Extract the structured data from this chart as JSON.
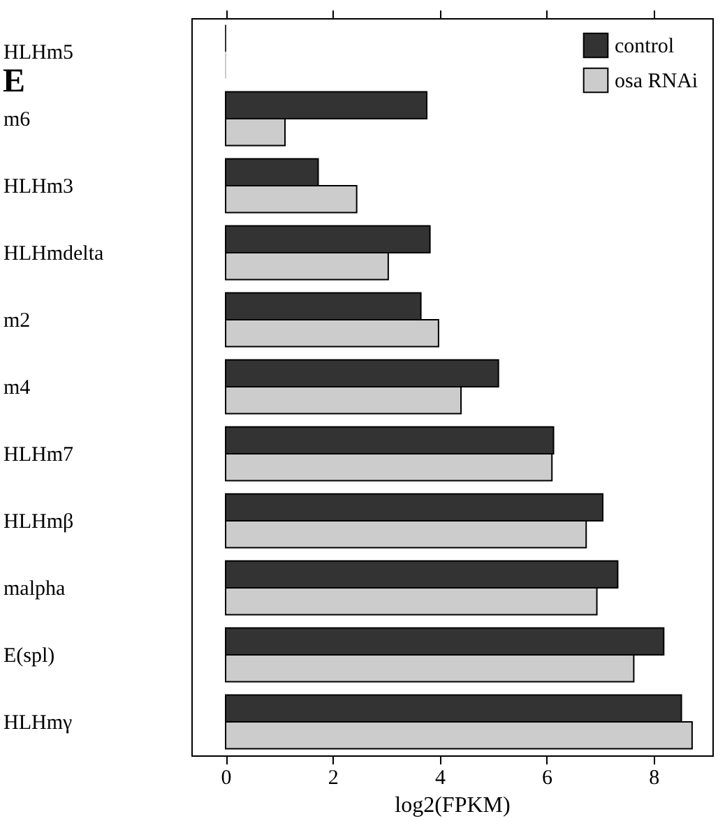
{
  "chart_data": {
    "type": "bar",
    "orientation": "horizontal",
    "xlabel": "log2(FPKM)",
    "annotations": [
      "E"
    ],
    "categories": [
      "HLHm5",
      "m6",
      "HLHm3",
      "HLHmdelta",
      "m2",
      "m4",
      "HLHm7",
      "HLHmβ",
      "malpha",
      "E(spl)",
      "HLHmγ"
    ],
    "series": [
      {
        "name": "control",
        "color": "#333333",
        "values": [
          0,
          3.76,
          1.73,
          3.82,
          3.65,
          5.1,
          6.13,
          7.05,
          7.33,
          8.19,
          8.52
        ]
      },
      {
        "name": "osa RNAi",
        "color": "#cccccc",
        "values": [
          0,
          1.11,
          2.45,
          3.04,
          3.98,
          4.4,
          6.1,
          6.74,
          6.94,
          7.63,
          8.72
        ]
      }
    ],
    "xlim": [
      -0.64,
      9.1
    ],
    "xticks": [
      0,
      2,
      4,
      6,
      8
    ],
    "grid": false,
    "legend": "top right"
  }
}
